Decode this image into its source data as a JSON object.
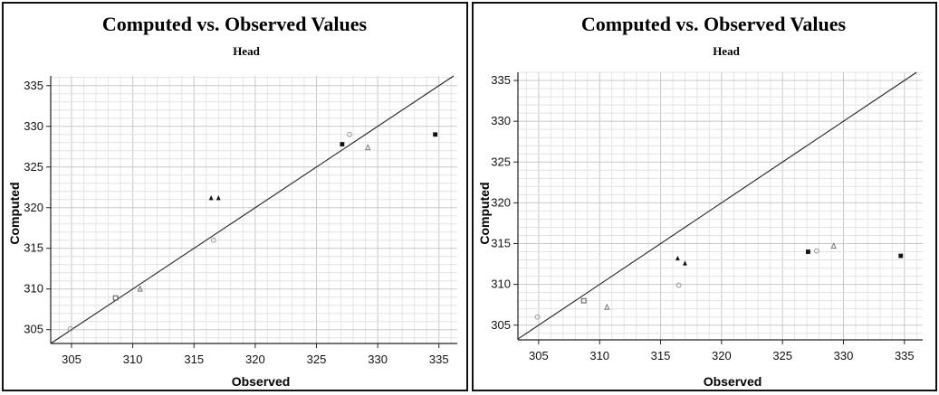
{
  "chart_data": [
    {
      "type": "scatter",
      "title": "Computed vs. Observed Values",
      "subtitle": "Head",
      "xlabel": "Observed",
      "ylabel": "Computed",
      "xlim": [
        303.3,
        336.5
      ],
      "ylim": [
        303.3,
        336.2
      ],
      "xticks": [
        "305",
        "310",
        "315",
        "320",
        "325",
        "330",
        "335"
      ],
      "yticks": [
        "305",
        "310",
        "315",
        "320",
        "325",
        "330",
        "335"
      ],
      "reference_line": "1:1",
      "grid": true,
      "points": [
        {
          "x": 304.9,
          "y": 305.1,
          "marker": "open-circle"
        },
        {
          "x": 308.6,
          "y": 308.9,
          "marker": "open-square"
        },
        {
          "x": 310.6,
          "y": 310.0,
          "marker": "open-triangle"
        },
        {
          "x": 316.4,
          "y": 321.2,
          "marker": "filled-triangle"
        },
        {
          "x": 317.0,
          "y": 321.2,
          "marker": "filled-triangle"
        },
        {
          "x": 316.6,
          "y": 316.0,
          "marker": "open-circle"
        },
        {
          "x": 327.1,
          "y": 327.8,
          "marker": "filled-square"
        },
        {
          "x": 327.7,
          "y": 329.0,
          "marker": "open-circle"
        },
        {
          "x": 329.2,
          "y": 327.4,
          "marker": "open-triangle"
        },
        {
          "x": 334.7,
          "y": 329.0,
          "marker": "filled-square"
        }
      ]
    },
    {
      "type": "scatter",
      "title": "Computed vs. Observed Values",
      "subtitle": "Head",
      "xlabel": "Observed",
      "ylabel": "Computed",
      "xlim": [
        303.3,
        336.5
      ],
      "ylim": [
        303.2,
        336.0
      ],
      "xticks": [
        "305",
        "310",
        "315",
        "320",
        "325",
        "330",
        "335"
      ],
      "yticks": [
        "305",
        "310",
        "315",
        "320",
        "325",
        "330",
        "335"
      ],
      "reference_line": "1:1",
      "grid": true,
      "points": [
        {
          "x": 304.9,
          "y": 306.0,
          "marker": "open-circle"
        },
        {
          "x": 308.7,
          "y": 308.0,
          "marker": "open-square"
        },
        {
          "x": 310.6,
          "y": 307.2,
          "marker": "open-triangle"
        },
        {
          "x": 316.4,
          "y": 313.2,
          "marker": "filled-triangle"
        },
        {
          "x": 317.0,
          "y": 312.6,
          "marker": "filled-triangle"
        },
        {
          "x": 316.5,
          "y": 309.9,
          "marker": "open-circle"
        },
        {
          "x": 327.1,
          "y": 314.0,
          "marker": "filled-square"
        },
        {
          "x": 327.8,
          "y": 314.1,
          "marker": "open-circle"
        },
        {
          "x": 329.2,
          "y": 314.7,
          "marker": "open-triangle"
        },
        {
          "x": 334.7,
          "y": 313.5,
          "marker": "filled-square"
        }
      ]
    }
  ]
}
